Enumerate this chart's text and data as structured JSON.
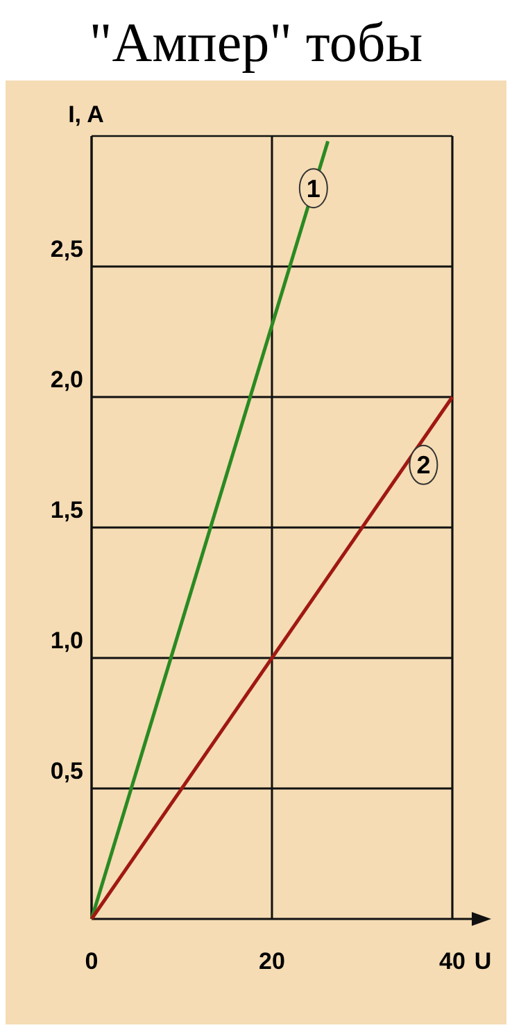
{
  "chart_data": {
    "type": "line",
    "title": "\"Ампер\" тобы",
    "xlabel": "U",
    "ylabel": "I, A",
    "xlim": [
      0,
      40
    ],
    "xticks": [
      0,
      20,
      40
    ],
    "ylim": [
      0,
      3
    ],
    "yticks": [
      {
        "value": 0.5,
        "label": "0,5"
      },
      {
        "value": 1,
        "label": "1,0"
      },
      {
        "value": 1.5,
        "label": "1,5"
      },
      {
        "value": 2,
        "label": "2,0"
      },
      {
        "value": 2.5,
        "label": "2,5"
      }
    ],
    "grid": true,
    "line_style": "solid",
    "series": [
      {
        "color": "#2a8a22",
        "x": [
          0,
          26.2
        ],
        "values": [
          0,
          2.98
        ]
      },
      {
        "color": "#a01812",
        "x": [
          0,
          40
        ],
        "values": [
          0,
          2.0
        ]
      }
    ],
    "annotations": [
      {
        "text": "1",
        "x": 24.6,
        "y": 2.8
      },
      {
        "text": "2",
        "x": 36.8,
        "y": 1.74
      }
    ]
  }
}
